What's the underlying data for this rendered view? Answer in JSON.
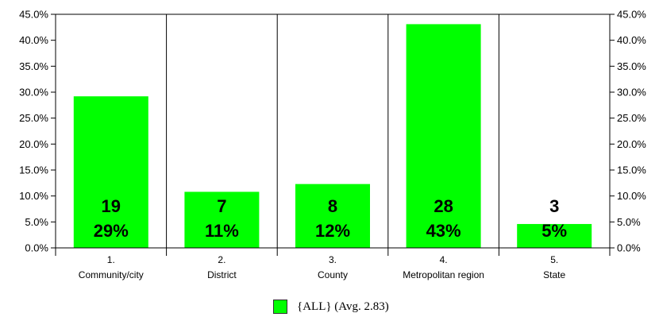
{
  "chart_data": {
    "type": "bar",
    "categories": [
      {
        "number": "1.",
        "label": "Community/city"
      },
      {
        "number": "2.",
        "label": "District"
      },
      {
        "number": "3.",
        "label": "County"
      },
      {
        "number": "4.",
        "label": "Metropolitan region"
      },
      {
        "number": "5.",
        "label": "State"
      }
    ],
    "series": [
      {
        "name": "{ALL} (Avg. 2.83)",
        "color": "#00ff00",
        "values": [
          29.2,
          10.8,
          12.3,
          43.1,
          4.6
        ],
        "counts": [
          "19",
          "7",
          "8",
          "28",
          "3"
        ],
        "percent_labels": [
          "29%",
          "11%",
          "12%",
          "43%",
          "5%"
        ]
      }
    ],
    "y_ticks": [
      "0.0%",
      "5.0%",
      "10.0%",
      "15.0%",
      "20.0%",
      "25.0%",
      "30.0%",
      "35.0%",
      "40.0%",
      "45.0%"
    ],
    "ylim": [
      0,
      45
    ],
    "y_axis": "both sides",
    "grid": false,
    "legend_position": "bottom-center"
  }
}
